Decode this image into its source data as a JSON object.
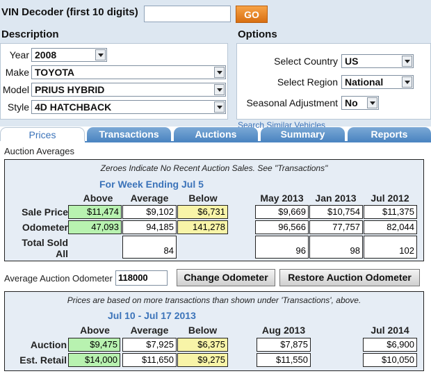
{
  "vin": {
    "label": "VIN Decoder (first 10 digits)",
    "value": "",
    "go_label": "GO"
  },
  "description": {
    "title": "Description",
    "fields": [
      {
        "label": "Year",
        "value": "2008"
      },
      {
        "label": "Make",
        "value": "TOYOTA"
      },
      {
        "label": "Model",
        "value": "PRIUS HYBRID"
      },
      {
        "label": "Style",
        "value": "4D HATCHBACK"
      }
    ]
  },
  "options": {
    "title": "Options",
    "fields": [
      {
        "label": "Select Country",
        "value": "US"
      },
      {
        "label": "Select Region",
        "value": "National"
      },
      {
        "label": "Seasonal Adjustment",
        "value": "No"
      }
    ],
    "link": "Search Similar Vehicles"
  },
  "tabs": [
    "Prices",
    "Transactions",
    "Auctions",
    "Summary",
    "Reports"
  ],
  "auction": {
    "section_label": "Auction Averages",
    "note": "Zeroes Indicate No Recent Auction Sales. See \"Transactions\"",
    "week_label": "For Week Ending Jul 5",
    "col_headers": [
      "Above",
      "Average",
      "Below"
    ],
    "month_headers": [
      "May 2013",
      "Jan 2013",
      "Jul 2012"
    ],
    "rows": [
      {
        "label": "Sale Price",
        "above": "$11,474",
        "average": "$9,102",
        "below": "$6,731",
        "months": [
          "$9,669",
          "$10,754",
          "$11,375"
        ]
      },
      {
        "label": "Odometer",
        "above": "47,093",
        "average": "94,185",
        "below": "141,278",
        "months": [
          "96,566",
          "77,757",
          "82,044"
        ]
      }
    ],
    "total": {
      "label1": "Total Sold",
      "label2": "All",
      "average": "84",
      "months": [
        "96",
        "98",
        "102"
      ]
    }
  },
  "odometer": {
    "label": "Average Auction Odometer",
    "value": "118000",
    "change_label": "Change Odometer",
    "restore_label": "Restore Auction Odometer"
  },
  "prices": {
    "note": "Prices are based on more transactions than shown under 'Transactions', above.",
    "period_label": "Jul 10 - Jul 17 2013",
    "col_headers": [
      "Above",
      "Average",
      "Below"
    ],
    "future_headers": [
      "Aug 2013",
      "Jul 2014"
    ],
    "rows": [
      {
        "label": "Auction",
        "above": "$9,475",
        "average": "$7,925",
        "below": "$6,375",
        "future": [
          "$7,875",
          "$6,900"
        ]
      },
      {
        "label": "Est. Retail",
        "above": "$14,000",
        "average": "$11,650",
        "below": "$9,275",
        "future": [
          "$11,550",
          "$10,050"
        ]
      }
    ]
  }
}
